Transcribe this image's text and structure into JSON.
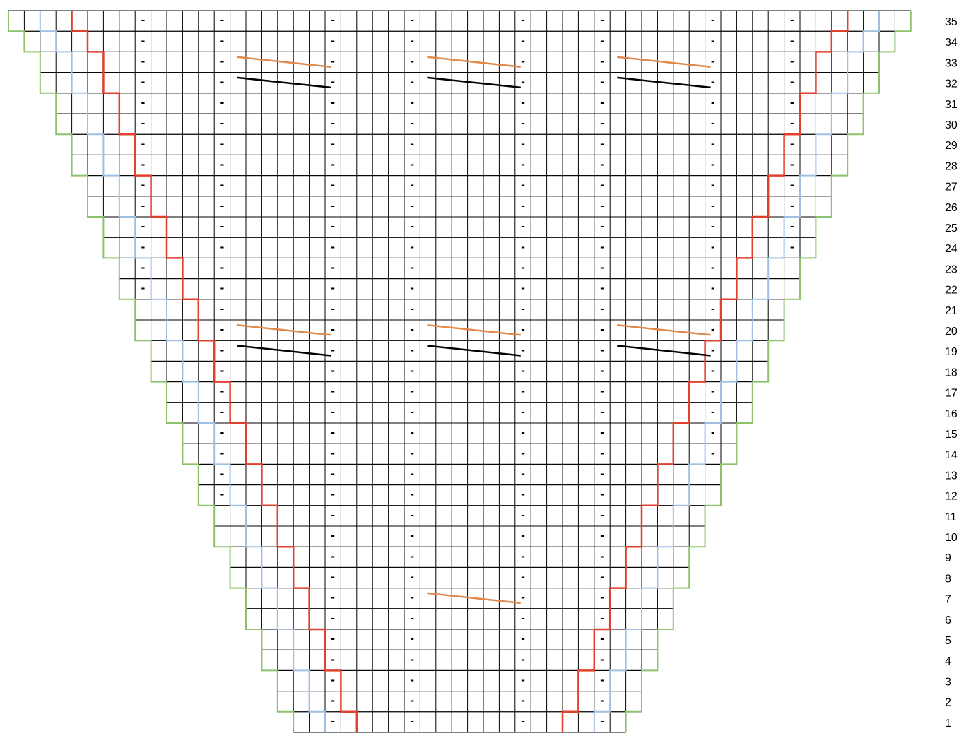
{
  "chart": {
    "row_labels": [
      "1",
      "2",
      "3",
      "4",
      "5",
      "6",
      "7",
      "8",
      "9",
      "10",
      "11",
      "12",
      "13",
      "14",
      "15",
      "16",
      "17",
      "18",
      "19",
      "20",
      "21",
      "22",
      "23",
      "24",
      "25",
      "26",
      "27",
      "28",
      "29",
      "30",
      "31",
      "32",
      "33",
      "34",
      "35"
    ],
    "purl_symbol": "-",
    "columns_total": 56,
    "rows_total": 35,
    "chart_cols_at_row_1": [
      17,
      40
    ],
    "chart_cols_at_row_35": [
      0,
      57
    ],
    "purl_columns_center": [
      8,
      13,
      20,
      25,
      32,
      37,
      44,
      49
    ],
    "cable_rows": [
      7,
      19,
      20,
      32,
      33
    ],
    "colors": {
      "grid": "#000000",
      "edge_outline": "#8dc26d",
      "blue_marker": "#9fbfe3",
      "red_marker": "#e0412f",
      "cable_orange": "#e08a4c",
      "cable_black": "#000000"
    }
  }
}
